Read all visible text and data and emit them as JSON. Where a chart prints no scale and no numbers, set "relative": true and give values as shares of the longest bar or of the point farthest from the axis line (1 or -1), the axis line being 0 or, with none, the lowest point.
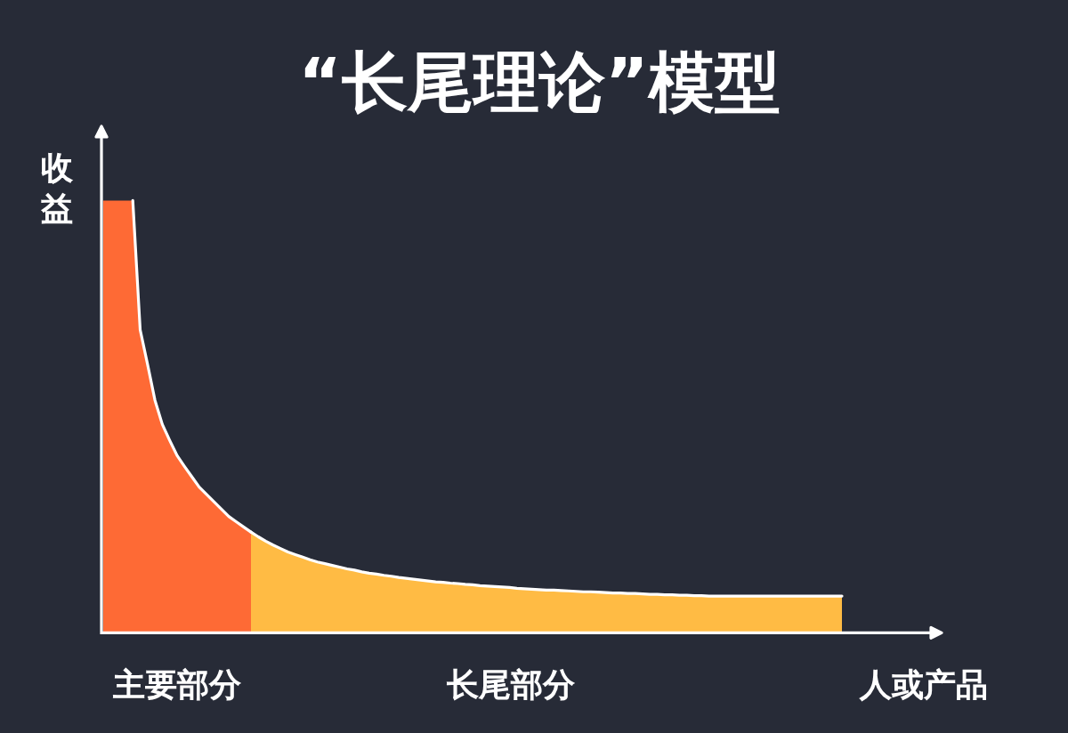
{
  "chart_data": {
    "type": "area",
    "title": "“长尾理论”模型",
    "ylabel": "收益",
    "xlabel": "人或产品",
    "relative": true,
    "categories": [
      null,
      null,
      null,
      null,
      null,
      null,
      null,
      null,
      null,
      null,
      null,
      null,
      null,
      null,
      null,
      null,
      null,
      null,
      null,
      null,
      null,
      null,
      null,
      null,
      null,
      null,
      null,
      null,
      null,
      null,
      null,
      null,
      null,
      null,
      null,
      null,
      null,
      null,
      null,
      null,
      null,
      null,
      null,
      null,
      null,
      null,
      null,
      null,
      null,
      null,
      null,
      null,
      null,
      null,
      null,
      null,
      null,
      null,
      null,
      null,
      null,
      null,
      null,
      null,
      null,
      null,
      null,
      null,
      null,
      null,
      null,
      null,
      null,
      null,
      null,
      null,
      null,
      null,
      null,
      null,
      null,
      null,
      null,
      null,
      null,
      null,
      null,
      null,
      null,
      null,
      null,
      null,
      null,
      null,
      null,
      null,
      null,
      null,
      null,
      null,
      null
    ],
    "series": [
      {
        "name": "主要部分",
        "color": "#fe6a35",
        "values": [
          1.0,
          1.0,
          1.0,
          1.0,
          1.0,
          0.701,
          0.621,
          0.538,
          0.482,
          0.445,
          0.41,
          0.385,
          0.361,
          0.337,
          0.32,
          0.303,
          0.286,
          0.269,
          0.257,
          0.245,
          0.233,
          null,
          null,
          null,
          null,
          null,
          null,
          null,
          null,
          null,
          null,
          null,
          null,
          null,
          null,
          null,
          null,
          null,
          null,
          null,
          null,
          null,
          null,
          null,
          null,
          null,
          null,
          null,
          null,
          null,
          null,
          null,
          null,
          null,
          null,
          null,
          null,
          null,
          null,
          null,
          null,
          null,
          null,
          null,
          null,
          null,
          null,
          null,
          null,
          null,
          null,
          null,
          null,
          null,
          null,
          null,
          null,
          null,
          null,
          null,
          null,
          null,
          null,
          null,
          null,
          null,
          null,
          null,
          null,
          null,
          null,
          null,
          null,
          null,
          null,
          null,
          null,
          null,
          null,
          null,
          null
        ]
      },
      {
        "name": "长尾部分",
        "color": "#ffbb44",
        "values": [
          null,
          null,
          null,
          null,
          null,
          null,
          null,
          null,
          null,
          null,
          null,
          null,
          null,
          null,
          null,
          null,
          null,
          null,
          null,
          null,
          0.233,
          0.222,
          0.212,
          0.203,
          0.195,
          0.187,
          0.181,
          0.175,
          0.169,
          0.164,
          0.16,
          0.156,
          0.152,
          0.148,
          0.145,
          0.141,
          0.138,
          0.136,
          0.133,
          0.131,
          0.128,
          0.126,
          0.124,
          0.122,
          0.12,
          0.118,
          0.117,
          0.115,
          0.114,
          0.112,
          0.111,
          0.109,
          0.108,
          0.107,
          0.106,
          0.105,
          0.103,
          0.102,
          0.101,
          0.1,
          0.099,
          0.099,
          0.098,
          0.097,
          0.096,
          0.095,
          0.095,
          0.094,
          0.093,
          0.092,
          0.092,
          0.091,
          0.091,
          0.09,
          0.089,
          0.089,
          0.088,
          0.088,
          0.087,
          0.087,
          0.086,
          0.086,
          0.085,
          0.085,
          0.085,
          0.085,
          0.085,
          0.085,
          0.085,
          0.085,
          0.085,
          0.085,
          0.085,
          0.085,
          0.085,
          0.085,
          0.085,
          0.085,
          0.085,
          0.085,
          0.085
        ]
      }
    ]
  }
}
